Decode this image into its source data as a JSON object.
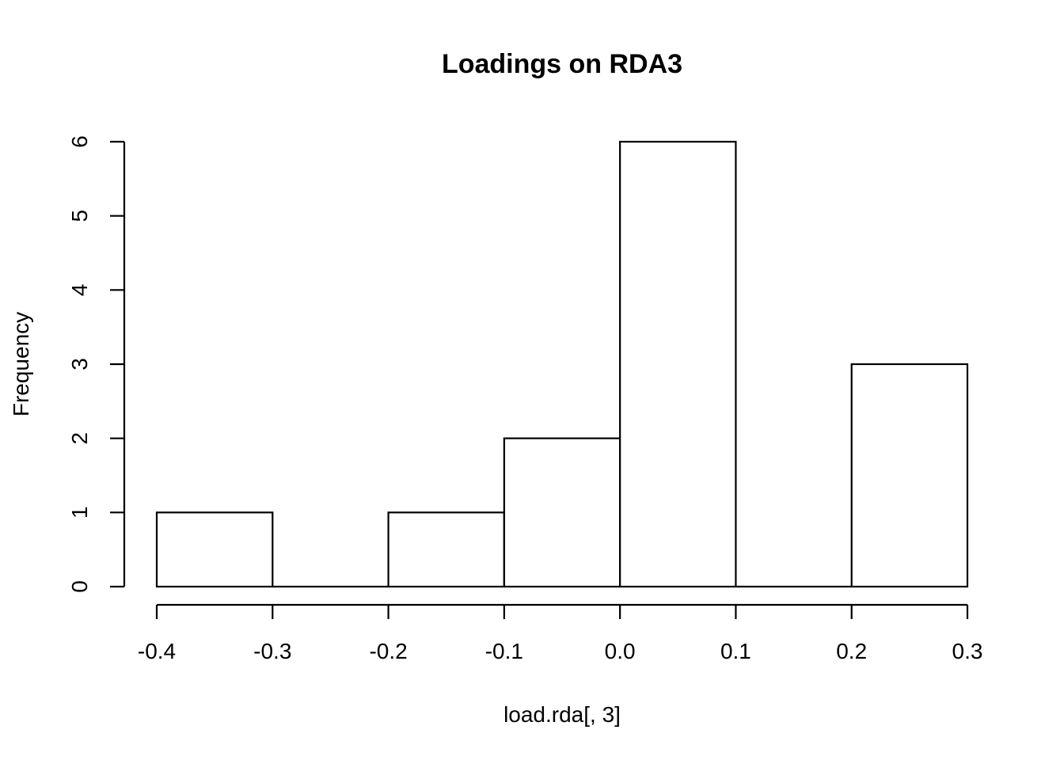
{
  "chart_data": {
    "type": "bar",
    "title": "Loadings on RDA3",
    "xlabel": "load.rda[, 3]",
    "ylabel": "Frequency",
    "bins": [
      {
        "start": -0.4,
        "end": -0.3,
        "count": 1
      },
      {
        "start": -0.3,
        "end": -0.2,
        "count": 0
      },
      {
        "start": -0.2,
        "end": -0.1,
        "count": 1
      },
      {
        "start": -0.1,
        "end": 0.0,
        "count": 2
      },
      {
        "start": 0.0,
        "end": 0.1,
        "count": 6
      },
      {
        "start": 0.1,
        "end": 0.2,
        "count": 0
      },
      {
        "start": 0.2,
        "end": 0.3,
        "count": 3
      }
    ],
    "xlim": [
      -0.4,
      0.3
    ],
    "ylim": [
      0,
      6
    ],
    "xticks": [
      "-0.4",
      "-0.3",
      "-0.2",
      "-0.1",
      "0.0",
      "0.1",
      "0.2",
      "0.3"
    ],
    "yticks": [
      "0",
      "1",
      "2",
      "3",
      "4",
      "5",
      "6"
    ],
    "grid": false,
    "colors": {
      "bar_fill": "#ffffff",
      "bar_stroke": "#000000"
    }
  }
}
